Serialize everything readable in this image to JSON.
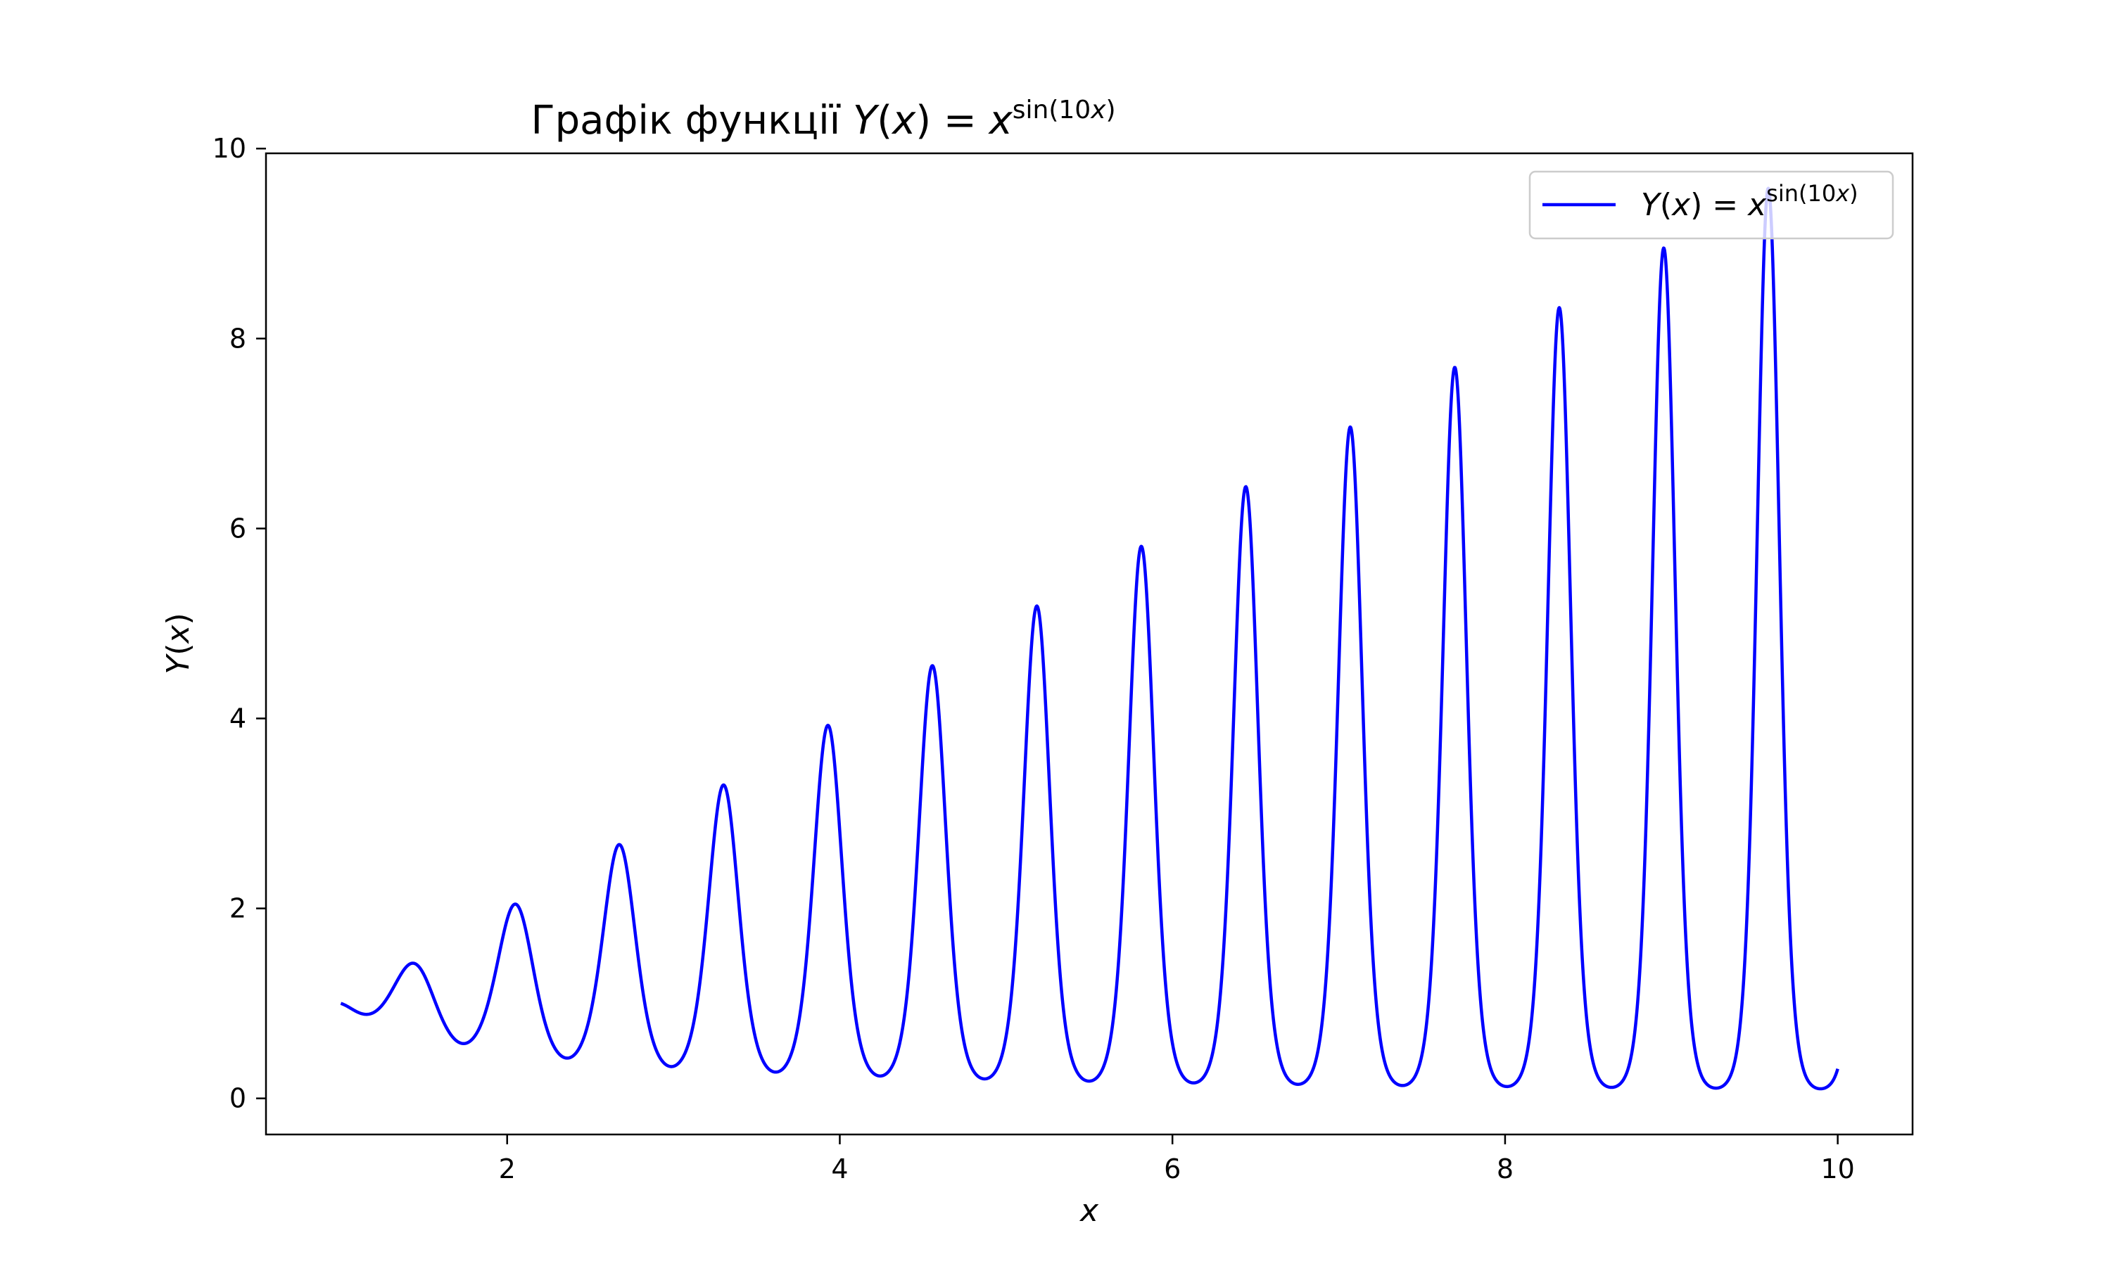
{
  "chart_data": {
    "type": "line",
    "title": {
      "prefix": "Графік функції ",
      "func": "Y",
      "paren_open": "(",
      "var": "x",
      "paren_close": ")",
      "equals": " = ",
      "base": "x",
      "exponent": "sin(10",
      "exponent_var": "x",
      "exponent_close": ")"
    },
    "xlabel": "x",
    "ylabel": {
      "func": "Y",
      "paren_open": "(",
      "var": "x",
      "paren_close": ")"
    },
    "x_range": [
      1,
      10
    ],
    "xlim": [
      0.55,
      10.45
    ],
    "ylim": [
      -0.38,
      9.95
    ],
    "x_ticks": [
      2,
      4,
      6,
      8,
      10
    ],
    "x_tick_labels": [
      "2",
      "4",
      "6",
      "8",
      "10"
    ],
    "y_ticks": [
      0,
      2,
      4,
      6,
      8,
      10
    ],
    "y_tick_labels": [
      "0",
      "2",
      "4",
      "6",
      "8",
      "10"
    ],
    "grid": false,
    "legend_position": "top-right",
    "series": [
      {
        "name": "Y(x) = x^sin(10x)",
        "legend": {
          "func": "Y",
          "paren_open": "(",
          "var": "x",
          "paren_close": ")",
          "equals": " = ",
          "base": "x",
          "exponent": "sin(10",
          "exponent_var": "x",
          "exponent_close": ")"
        },
        "color": "#0000ff",
        "peaks": [
          {
            "x": 1.44,
            "y": 1.42
          },
          {
            "x": 2.05,
            "y": 2.04
          },
          {
            "x": 2.67,
            "y": 2.67
          },
          {
            "x": 3.3,
            "y": 3.29
          },
          {
            "x": 3.93,
            "y": 3.91
          },
          {
            "x": 4.56,
            "y": 4.55
          },
          {
            "x": 5.18,
            "y": 5.18
          },
          {
            "x": 5.81,
            "y": 5.81
          },
          {
            "x": 6.44,
            "y": 6.42
          },
          {
            "x": 7.07,
            "y": 7.02
          },
          {
            "x": 7.7,
            "y": 7.66
          },
          {
            "x": 8.33,
            "y": 8.31
          },
          {
            "x": 8.96,
            "y": 8.94
          },
          {
            "x": 9.58,
            "y": 9.57
          }
        ]
      }
    ]
  }
}
